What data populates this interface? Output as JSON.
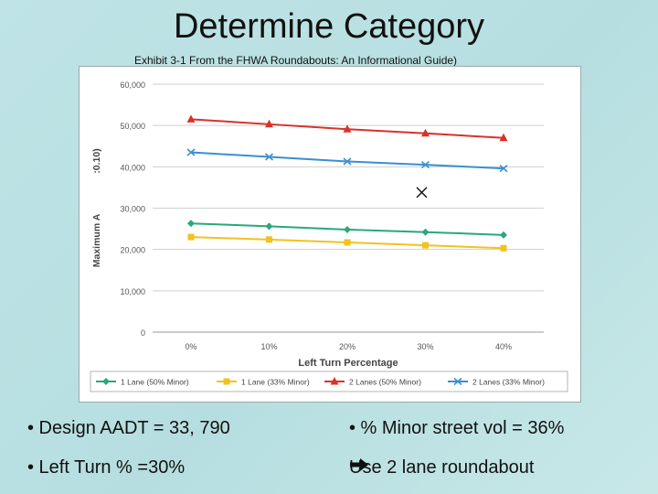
{
  "slide": {
    "title": "Determine Category",
    "subtitle": "Exhibit 3-1  From the FHWA Roundabouts: An Informational Guide)"
  },
  "bullets": {
    "design_aadt": "• Design AADT = 33, 790",
    "minor_vol": "• % Minor street vol = 36%",
    "left_turn": "• Left Turn % =30%",
    "conclusion": "Use 2 lane roundabout"
  },
  "chart_data": {
    "type": "line",
    "categories": [
      "0%",
      "10%",
      "20%",
      "30%",
      "40%"
    ],
    "xlabel": "Left Turn Percentage",
    "ylabel": "Maximum A",
    "ylabel_extra": ":0.10)",
    "ylim": [
      0,
      60000
    ],
    "yticks": [
      "0",
      "10,000",
      "20,000",
      "30,000",
      "40,000",
      "50,000",
      "60,000"
    ],
    "grid": true,
    "legend_position": "bottom",
    "series": [
      {
        "name": "1 Lane (50% Minor)",
        "values": [
          26300,
          25600,
          24800,
          24200,
          23500
        ],
        "color": "#2aa87a",
        "marker": "diamond"
      },
      {
        "name": "1 Lane (33% Minor)",
        "values": [
          23000,
          22400,
          21700,
          21000,
          20300
        ],
        "color": "#f2c21e",
        "marker": "square"
      },
      {
        "name": "2 Lanes (50% Minor)",
        "values": [
          51500,
          50300,
          49100,
          48100,
          47000
        ],
        "color": "#d8322a",
        "marker": "triangle"
      },
      {
        "name": "2 Lanes (33% Minor)",
        "values": [
          43500,
          42400,
          41300,
          40500,
          39600
        ],
        "color": "#3a8fd0",
        "marker": "x"
      }
    ],
    "annotation": {
      "marker": "x",
      "x_value": "30%",
      "y_value": 33790,
      "color": "#111"
    }
  }
}
